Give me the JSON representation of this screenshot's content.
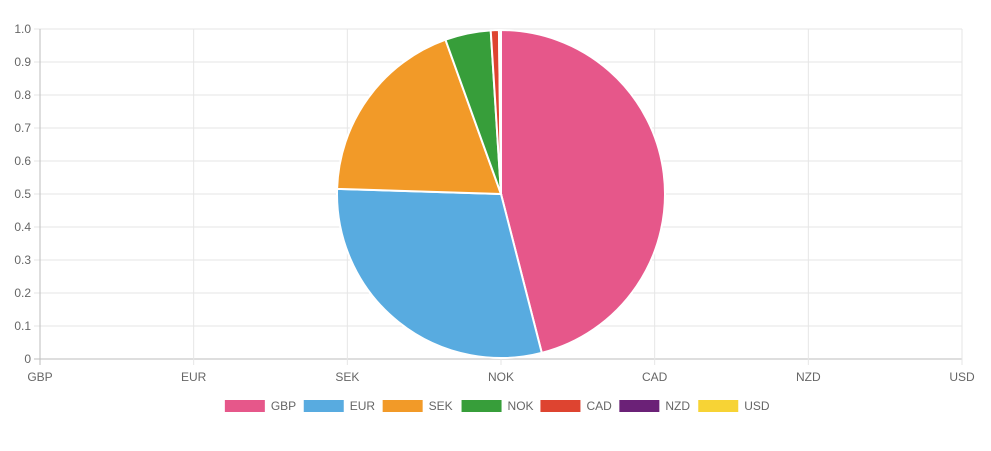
{
  "chart_data": {
    "type": "pie",
    "categories": [
      "GBP",
      "EUR",
      "SEK",
      "NOK",
      "CAD",
      "NZD",
      "USD"
    ],
    "values": [
      46.0,
      29.5,
      19.0,
      4.5,
      0.8,
      0.2,
      0.0
    ],
    "colors": [
      "#e6578a",
      "#58abe0",
      "#f29a28",
      "#379e3a",
      "#de4430",
      "#6b2177",
      "#f7d335"
    ],
    "ylim": [
      0,
      1
    ],
    "yticks": [
      "0",
      "0.1",
      "0.2",
      "0.3",
      "0.4",
      "0.5",
      "0.6",
      "0.7",
      "0.8",
      "0.9",
      "1.0"
    ],
    "xticks": [
      "GBP",
      "EUR",
      "SEK",
      "NOK",
      "CAD",
      "NZD",
      "USD"
    ],
    "grid": true,
    "legend_position": "bottom"
  }
}
